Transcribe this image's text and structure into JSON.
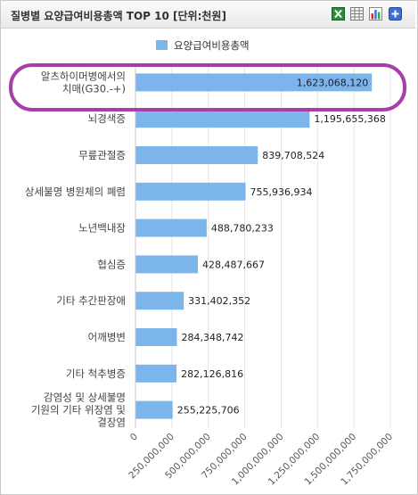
{
  "header": {
    "title": "질병별 요양급여비용총액 TOP 10 [단위:천원]",
    "toolbar_icons": [
      "excel-icon",
      "grid-icon",
      "chart-icon",
      "plus-icon"
    ]
  },
  "chart_data": {
    "type": "bar",
    "orientation": "horizontal",
    "categories": [
      [
        "알츠하이머병에서의",
        "치매(G30.-+)"
      ],
      [
        "뇌경색증"
      ],
      [
        "무릎관절증"
      ],
      [
        "상세불명 병원체의 폐렴"
      ],
      [
        "노년백내장"
      ],
      [
        "협심증"
      ],
      [
        "기타 추간판장애"
      ],
      [
        "어깨병변"
      ],
      [
        "기타 척추병증"
      ],
      [
        "감염성 및 상세불명",
        "기원의 기타 위장염 및",
        "결장염"
      ]
    ],
    "value_labels": [
      "1,623,068,120",
      "1,195,655,368",
      "839,708,524",
      "755,936,934",
      "488,780,233",
      "428,487,667",
      "331,402,352",
      "284,348,742",
      "282,126,816",
      "255,225,706"
    ],
    "series": [
      {
        "name": "요양급여비용총액",
        "color": "#7cb5ec",
        "values": [
          1623068120,
          1195655368,
          839708524,
          755936934,
          488780233,
          428487667,
          331402352,
          284348742,
          282126816,
          255225706
        ]
      }
    ],
    "xlim": [
      0,
      1750000000
    ],
    "x_ticks": [
      0,
      250000000,
      500000000,
      750000000,
      1000000000,
      1250000000,
      1500000000,
      1750000000
    ],
    "x_tick_labels": [
      "0",
      "250,000,000",
      "500,000,000",
      "750,000,000",
      "1,000,000,000",
      "1,250,000,000",
      "1,500,000,000",
      "1,750,000,000"
    ],
    "legend_position": "top-center",
    "grid": true,
    "highlight": {
      "category_index": 0,
      "color": "#a83ea8"
    }
  }
}
